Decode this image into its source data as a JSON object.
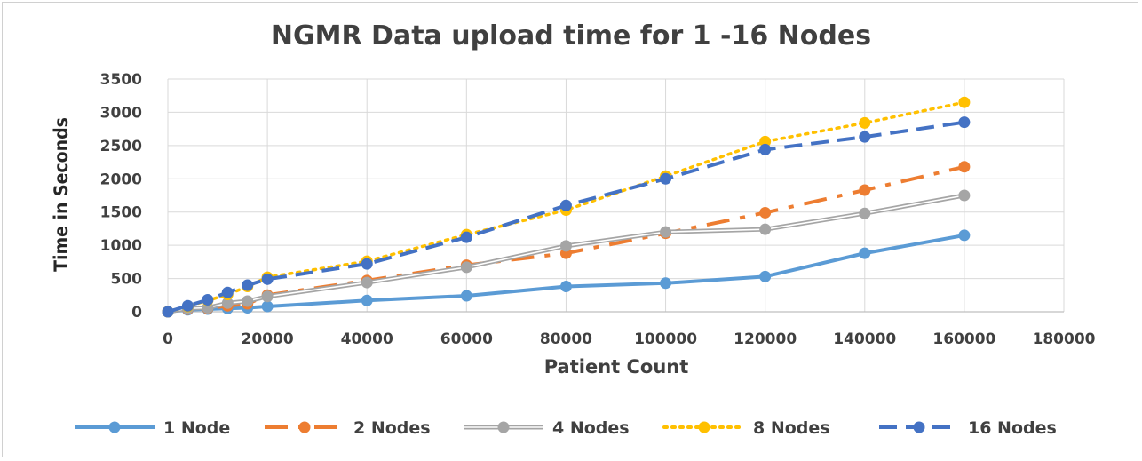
{
  "chart_data": {
    "type": "line",
    "title": "NGMR Data upload time for 1 -16 Nodes",
    "xlabel": "Patient Count",
    "ylabel": "Time in Seconds",
    "xlim": [
      0,
      180000
    ],
    "ylim": [
      0,
      3500
    ],
    "xticks": [
      "0",
      "20000",
      "40000",
      "60000",
      "80000",
      "100000",
      "120000",
      "140000",
      "160000",
      "180000"
    ],
    "yticks": [
      "0",
      "500",
      "1000",
      "1500",
      "2000",
      "2500",
      "3000",
      "3500"
    ],
    "grid": true,
    "legend_position": "bottom",
    "series": [
      {
        "name": "1 Node",
        "color": "#5b9bd5",
        "style": "solid",
        "points": [
          [
            0,
            0
          ],
          [
            4000,
            30
          ],
          [
            8000,
            40
          ],
          [
            12000,
            50
          ],
          [
            16000,
            60
          ],
          [
            20000,
            80
          ],
          [
            40000,
            170
          ],
          [
            60000,
            240
          ],
          [
            80000,
            380
          ],
          [
            100000,
            430
          ],
          [
            120000,
            530
          ],
          [
            140000,
            880
          ],
          [
            160000,
            1150
          ]
        ]
      },
      {
        "name": "2 Nodes",
        "color": "#ed7d31",
        "style": "dashdot",
        "points": [
          [
            0,
            0
          ],
          [
            4000,
            40
          ],
          [
            8000,
            50
          ],
          [
            12000,
            90
          ],
          [
            16000,
            120
          ],
          [
            20000,
            250
          ],
          [
            40000,
            470
          ],
          [
            60000,
            700
          ],
          [
            80000,
            880
          ],
          [
            100000,
            1180
          ],
          [
            120000,
            1490
          ],
          [
            140000,
            1830
          ],
          [
            160000,
            2180
          ]
        ]
      },
      {
        "name": "4 Nodes",
        "color": "#a5a5a5",
        "style": "double",
        "points": [
          [
            0,
            0
          ],
          [
            4000,
            50
          ],
          [
            8000,
            60
          ],
          [
            12000,
            130
          ],
          [
            16000,
            160
          ],
          [
            20000,
            230
          ],
          [
            40000,
            440
          ],
          [
            60000,
            670
          ],
          [
            80000,
            990
          ],
          [
            100000,
            1200
          ],
          [
            120000,
            1240
          ],
          [
            140000,
            1480
          ],
          [
            160000,
            1750
          ]
        ]
      },
      {
        "name": "8 Nodes",
        "color": "#ffc000",
        "style": "dotted",
        "points": [
          [
            0,
            0
          ],
          [
            4000,
            80
          ],
          [
            8000,
            170
          ],
          [
            12000,
            260
          ],
          [
            16000,
            380
          ],
          [
            20000,
            520
          ],
          [
            40000,
            760
          ],
          [
            60000,
            1160
          ],
          [
            80000,
            1530
          ],
          [
            100000,
            2040
          ],
          [
            120000,
            2560
          ],
          [
            140000,
            2840
          ],
          [
            160000,
            3150
          ]
        ]
      },
      {
        "name": "16 Nodes",
        "color": "#4472c4",
        "style": "dashed",
        "points": [
          [
            0,
            0
          ],
          [
            4000,
            90
          ],
          [
            8000,
            180
          ],
          [
            12000,
            290
          ],
          [
            16000,
            400
          ],
          [
            20000,
            490
          ],
          [
            40000,
            720
          ],
          [
            60000,
            1120
          ],
          [
            80000,
            1600
          ],
          [
            100000,
            2000
          ],
          [
            120000,
            2440
          ],
          [
            140000,
            2630
          ],
          [
            160000,
            2850
          ]
        ]
      }
    ]
  }
}
